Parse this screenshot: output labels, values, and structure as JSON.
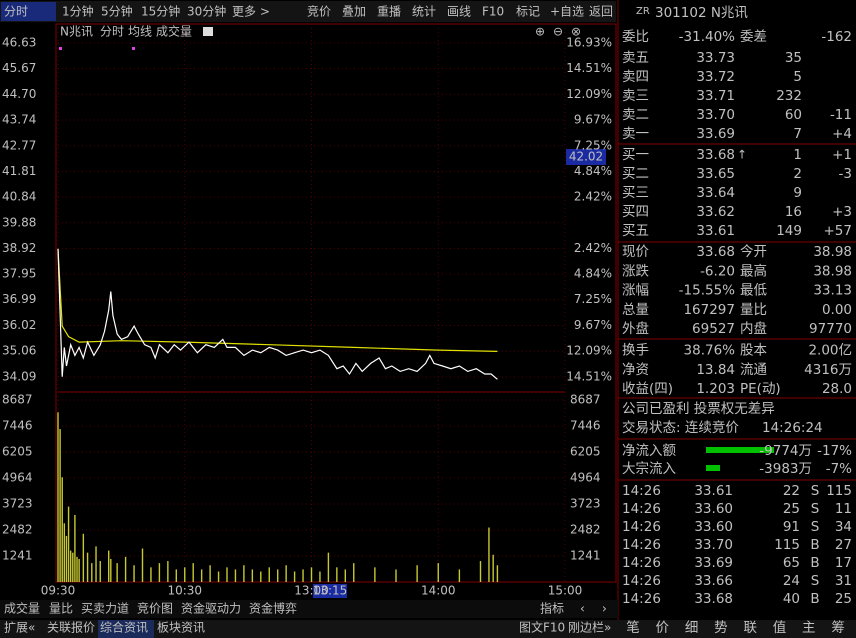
{
  "toolbar": {
    "left": [
      "分时",
      "1分钟",
      "5分钟",
      "15分钟",
      "30分钟",
      "更多 >"
    ],
    "right": [
      "竞价",
      "叠加",
      "重播",
      "统计",
      "画线",
      "F10",
      "标记",
      "+自选",
      "返回"
    ]
  },
  "chart_header": {
    "name": "N兆讯",
    "mode": "分时",
    "avg": "均线",
    "volume": "成交量"
  },
  "chart": {
    "price_ylim": [
      33.6,
      46.93
    ],
    "price_ticks": [
      46.63,
      45.67,
      44.7,
      43.74,
      42.77,
      41.81,
      40.84,
      39.88,
      38.92,
      37.95,
      36.99,
      36.02,
      35.06,
      34.09
    ],
    "price_tick_labels": [
      "46.63",
      "45.67",
      "44.70",
      "43.74",
      "42.77",
      "41.81",
      "40.84",
      "39.88",
      "38.92",
      "37.95",
      "36.99",
      "36.02",
      "35.06",
      "34.09"
    ],
    "pct_labels": [
      "16.93%",
      "14.51%",
      "12.09%",
      "9.67%",
      "7.25%",
      "4.84%",
      "2.42%",
      null,
      "2.42%",
      "4.84%",
      "7.25%",
      "9.67%",
      "12.09%",
      "14.51%"
    ],
    "volume_ylim": [
      0,
      8926
    ],
    "volume_ticks": [
      8687,
      7446,
      6205,
      4964,
      3723,
      2482,
      1241
    ],
    "xlim": [
      0,
      240
    ],
    "xticks": [
      {
        "value": 0,
        "label": "09:30"
      },
      {
        "value": 60,
        "label": "10:30"
      },
      {
        "value": 120,
        "label": "13:00"
      },
      {
        "value": 180,
        "label": "14:00"
      },
      {
        "value": 240,
        "label": "15:00"
      }
    ],
    "cursor_price": "42.02",
    "cursor_time": "13:15",
    "price_line": {
      "x": [
        0,
        1,
        2,
        3,
        4,
        6,
        8,
        10,
        12,
        14,
        17,
        20,
        22,
        24,
        25,
        26,
        28,
        30,
        33,
        36,
        38,
        41,
        44,
        46,
        48,
        52,
        55,
        58,
        62,
        66,
        70,
        74,
        78,
        80,
        84,
        88,
        92,
        96,
        100,
        104,
        108,
        112,
        116,
        120,
        124,
        128,
        132,
        135,
        138,
        141,
        144,
        148,
        152,
        155,
        158,
        162,
        166,
        170,
        174,
        176,
        178,
        182,
        186,
        190,
        194,
        198,
        202,
        205,
        208
      ],
      "values": [
        38.9,
        36.5,
        34.1,
        35.2,
        34.5,
        35.3,
        34.9,
        35.2,
        34.8,
        35.4,
        34.9,
        35.3,
        35.8,
        36.6,
        37.3,
        36.4,
        35.7,
        35.5,
        35.6,
        36.0,
        35.7,
        35.3,
        35.2,
        34.8,
        35.3,
        35.0,
        35.3,
        35.1,
        35.4,
        35.0,
        35.3,
        35.2,
        35.5,
        35.2,
        35.2,
        34.9,
        35.1,
        35.0,
        35.2,
        35.1,
        34.9,
        35.0,
        35.1,
        35.0,
        35.1,
        34.9,
        34.4,
        34.5,
        34.2,
        34.6,
        34.3,
        34.6,
        34.8,
        34.4,
        34.5,
        34.3,
        34.4,
        34.3,
        34.6,
        34.9,
        34.6,
        34.5,
        34.4,
        34.5,
        34.3,
        34.4,
        34.2,
        34.2,
        34.0
      ]
    },
    "avg_line": {
      "x": [
        0,
        2,
        5,
        10,
        30,
        60,
        100,
        140,
        180,
        208
      ],
      "values": [
        38.9,
        36.0,
        35.6,
        35.4,
        35.45,
        35.4,
        35.3,
        35.2,
        35.1,
        35.05
      ]
    },
    "volume": {
      "x": [
        0,
        1,
        2,
        3,
        4,
        5,
        6,
        7,
        8,
        9,
        10,
        12,
        14,
        16,
        18,
        20,
        24,
        25,
        28,
        32,
        36,
        40,
        44,
        48,
        52,
        56,
        60,
        64,
        68,
        72,
        76,
        80,
        84,
        88,
        92,
        96,
        100,
        104,
        108,
        112,
        116,
        120,
        124,
        128,
        132,
        136,
        140,
        150,
        160,
        170,
        180,
        190,
        200,
        204,
        206,
        208
      ],
      "values": [
        8100,
        7300,
        5000,
        2800,
        2200,
        3600,
        1500,
        1400,
        3200,
        1200,
        1100,
        2300,
        1400,
        900,
        1700,
        1000,
        1500,
        1100,
        900,
        1200,
        800,
        1600,
        700,
        900,
        1000,
        600,
        700,
        900,
        600,
        800,
        500,
        700,
        600,
        800,
        600,
        500,
        700,
        600,
        800,
        500,
        600,
        700,
        500,
        1400,
        700,
        600,
        900,
        700,
        600,
        800,
        900,
        600,
        1000,
        2600,
        1300,
        800
      ]
    }
  },
  "bottom_tabs": {
    "left": [
      "成交量",
      "量比",
      "买卖力道",
      "竞价图",
      "资金驱动力",
      "资金博弈"
    ],
    "right": [
      "指标",
      "‹",
      "›"
    ]
  },
  "status_bar": {
    "left": [
      "扩展«",
      "关联报价",
      "综合资讯",
      "板块资讯"
    ],
    "right": [
      "图文F10",
      "刚边栏»"
    ]
  },
  "quote": {
    "tag": "ZR",
    "title": "301102 N兆讯",
    "ratio": {
      "l1": "委比",
      "v1": "-31.40%",
      "l2": "委差",
      "v2": "-162"
    },
    "book": [
      {
        "label": "卖五",
        "price": "33.73",
        "qty": "35"
      },
      {
        "label": "卖四",
        "price": "33.72",
        "qty": "5"
      },
      {
        "label": "卖三",
        "price": "33.71",
        "qty": "232"
      },
      {
        "label": "卖二",
        "price": "33.70",
        "qty": "60",
        "diff": "-11"
      },
      {
        "label": "卖一",
        "price": "33.69",
        "qty": "7",
        "diff": "+4"
      },
      {
        "label": "买一",
        "price": "33.68",
        "qty": "1",
        "diff": "+1"
      },
      {
        "label": "买二",
        "price": "33.65",
        "qty": "2",
        "diff": "-3"
      },
      {
        "label": "买三",
        "price": "33.64",
        "qty": "9"
      },
      {
        "label": "买四",
        "price": "33.62",
        "qty": "16",
        "diff": "+3"
      },
      {
        "label": "买五",
        "price": "33.61",
        "qty": "149",
        "diff": "+57"
      }
    ],
    "stats": [
      {
        "l1": "现价",
        "v1": "33.68",
        "l2": "今开",
        "v2": "38.98"
      },
      {
        "l1": "涨跌",
        "v1": "-6.20",
        "l2": "最高",
        "v2": "38.98"
      },
      {
        "l1": "涨幅",
        "v1": "-15.55%",
        "l2": "最低",
        "v2": "33.13"
      },
      {
        "l1": "总量",
        "v1": "167297",
        "l2": "量比",
        "v2": "0.00"
      },
      {
        "l1": "外盘",
        "v1": "69527",
        "l2": "内盘",
        "v2": "97770"
      },
      {
        "l1": "换手",
        "v1": "38.76%",
        "l2": "股本",
        "v2": "2.00亿"
      },
      {
        "l1": "净资",
        "v1": "13.84",
        "l2": "流通",
        "v2": "4316万"
      },
      {
        "l1": "收益(四)",
        "v1": "1.203",
        "l2": "PE(动)",
        "v2": "28.0"
      }
    ],
    "note": "公司已盈利 投票权无差异",
    "status_label": "交易状态: 连续竞价",
    "status_time": "14:26:24",
    "flows": [
      {
        "label": "净流入额",
        "amount": "-9774万",
        "pct": "-17%"
      },
      {
        "label": "大宗流入",
        "amount": "-3983万",
        "pct": "-7%"
      }
    ],
    "ticks": [
      {
        "time": "14:26",
        "price": "33.61",
        "vol": "22",
        "side": "S",
        "count": "115"
      },
      {
        "time": "14:26",
        "price": "33.60",
        "vol": "25",
        "side": "S",
        "count": "11"
      },
      {
        "time": "14:26",
        "price": "33.60",
        "vol": "91",
        "side": "S",
        "count": "34"
      },
      {
        "time": "14:26",
        "price": "33.70",
        "vol": "115",
        "side": "B",
        "count": "27"
      },
      {
        "time": "14:26",
        "price": "33.69",
        "vol": "65",
        "side": "B",
        "count": "17"
      },
      {
        "time": "14:26",
        "price": "33.66",
        "vol": "24",
        "side": "S",
        "count": "31"
      },
      {
        "time": "14:26",
        "price": "33.68",
        "vol": "40",
        "side": "B",
        "count": "25"
      }
    ],
    "tabs": [
      "笔",
      "价",
      "细",
      "势",
      "联",
      "值",
      "主",
      "筹"
    ]
  }
}
